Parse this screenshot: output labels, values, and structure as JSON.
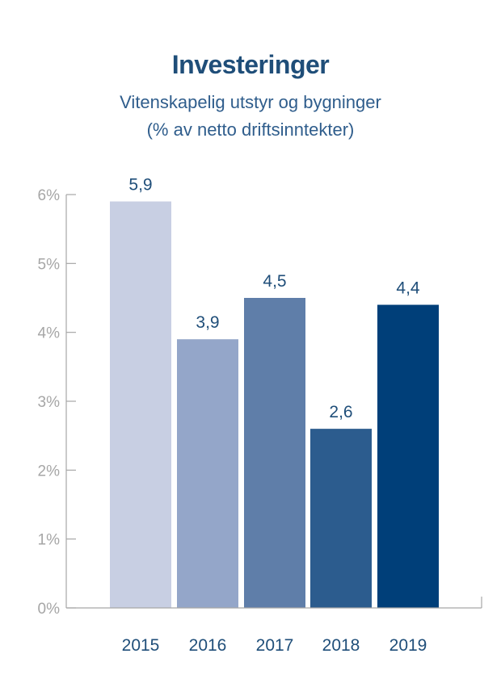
{
  "chart_data": {
    "type": "bar",
    "title": "Investeringer",
    "subtitle": [
      "Vitenskapelig utstyr og bygninger",
      "(% av netto driftsinntekter)"
    ],
    "xlabel": "",
    "ylabel": "",
    "categories": [
      "2015",
      "2016",
      "2017",
      "2018",
      "2019"
    ],
    "values": [
      5.9,
      3.9,
      4.5,
      2.6,
      4.4
    ],
    "value_labels": [
      "5,9",
      "3,9",
      "4,5",
      "2,6",
      "4,4"
    ],
    "ylim": [
      0,
      6
    ],
    "yticks": [
      {
        "value": 0,
        "label": "0%"
      },
      {
        "value": 1,
        "label": "1%"
      },
      {
        "value": 2,
        "label": "2%"
      },
      {
        "value": 3,
        "label": "3%"
      },
      {
        "value": 4,
        "label": "4%"
      },
      {
        "value": 5,
        "label": "5%"
      },
      {
        "value": 6,
        "label": "6%"
      }
    ],
    "bar_colors": [
      "#c8cfe3",
      "#94a6c9",
      "#5f7ea9",
      "#2c5c8e",
      "#003f79"
    ],
    "grid": false,
    "legend": "none"
  }
}
